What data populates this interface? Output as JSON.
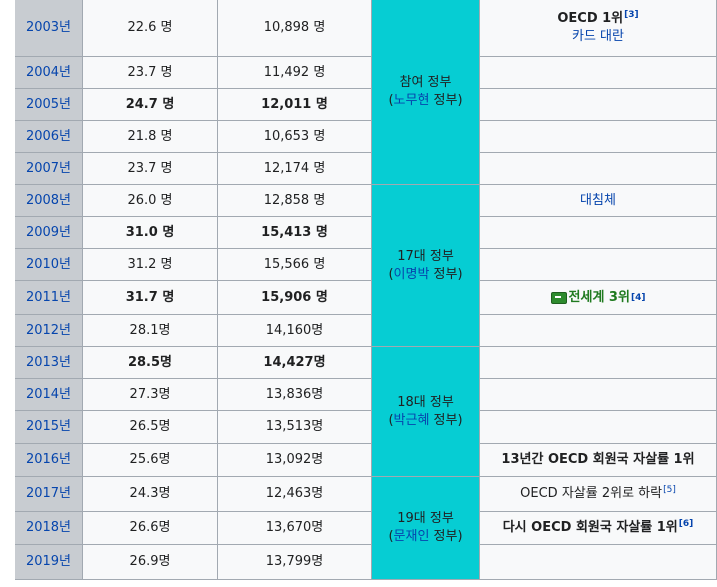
{
  "rows": [
    {
      "year": "2003년",
      "rate": "22.6 명",
      "count": "10,898 명",
      "bold": false
    },
    {
      "year": "2004년",
      "rate": "23.7 명",
      "count": "11,492 명",
      "bold": false
    },
    {
      "year": "2005년",
      "rate": "24.7 명",
      "count": "12,011 명",
      "bold": true
    },
    {
      "year": "2006년",
      "rate": "21.8 명",
      "count": "10,653 명",
      "bold": false
    },
    {
      "year": "2007년",
      "rate": "23.7 명",
      "count": "12,174 명",
      "bold": false
    },
    {
      "year": "2008년",
      "rate": "26.0 명",
      "count": "12,858 명",
      "bold": false
    },
    {
      "year": "2009년",
      "rate": "31.0 명",
      "count": "15,413 명",
      "bold": true
    },
    {
      "year": "2010년",
      "rate": "31.2 명",
      "count": "15,566 명",
      "bold": false
    },
    {
      "year": "2011년",
      "rate": "31.7 명",
      "count": "15,906 명",
      "bold": true
    },
    {
      "year": "2012년",
      "rate": "28.1명",
      "count": "14,160명",
      "bold": false
    },
    {
      "year": "2013년",
      "rate": "28.5명",
      "count": "14,427명",
      "bold": true
    },
    {
      "year": "2014년",
      "rate": "27.3명",
      "count": "13,836명",
      "bold": false
    },
    {
      "year": "2015년",
      "rate": "26.5명",
      "count": "13,513명",
      "bold": false
    },
    {
      "year": "2016년",
      "rate": "25.6명",
      "count": "13,092명",
      "bold": false
    },
    {
      "year": "2017년",
      "rate": "24.3명",
      "count": "12,463명",
      "bold": false
    },
    {
      "year": "2018년",
      "rate": "26.6명",
      "count": "13,670명",
      "bold": false
    },
    {
      "year": "2019년",
      "rate": "26.9명",
      "count": "13,799명",
      "bold": false
    }
  ],
  "governments": [
    {
      "start": 0,
      "span": 5,
      "prefix": "참여 정부",
      "link": "노무현",
      "suffix": " 정부)"
    },
    {
      "start": 5,
      "span": 5,
      "prefix": "17대 정부",
      "link": "이명박",
      "suffix": " 정부)"
    },
    {
      "start": 10,
      "span": 4,
      "prefix": "18대 정부",
      "link": "박근혜",
      "suffix": " 정부)"
    },
    {
      "start": 14,
      "span": 3,
      "prefix": "19대 정부",
      "link": "문재인",
      "suffix": " 정부)"
    }
  ],
  "notes": {
    "0": {
      "line1": "OECD 1위",
      "line1_ref": "[3]",
      "line2": "카드 대란",
      "line1_bold": true
    },
    "5": {
      "link": "대침체"
    },
    "8": {
      "green": "전세계 3위",
      "ref": "[4]",
      "icon": "flag-icon"
    },
    "13": {
      "text": "13년간 OECD 회원국 자살률 1위",
      "bold": true
    },
    "14": {
      "text": "OECD 자살률 2위로 하락",
      "ref": "[5]",
      "bold": false
    },
    "15": {
      "text": "다시 OECD 회원국 자살률 1위",
      "ref": "[6]",
      "bold": true
    }
  },
  "colors": {
    "year_bg": "#c8ccd1",
    "gov_bg": "#06cdd3",
    "link": "#0645ad",
    "green": "#1f7a1f"
  }
}
